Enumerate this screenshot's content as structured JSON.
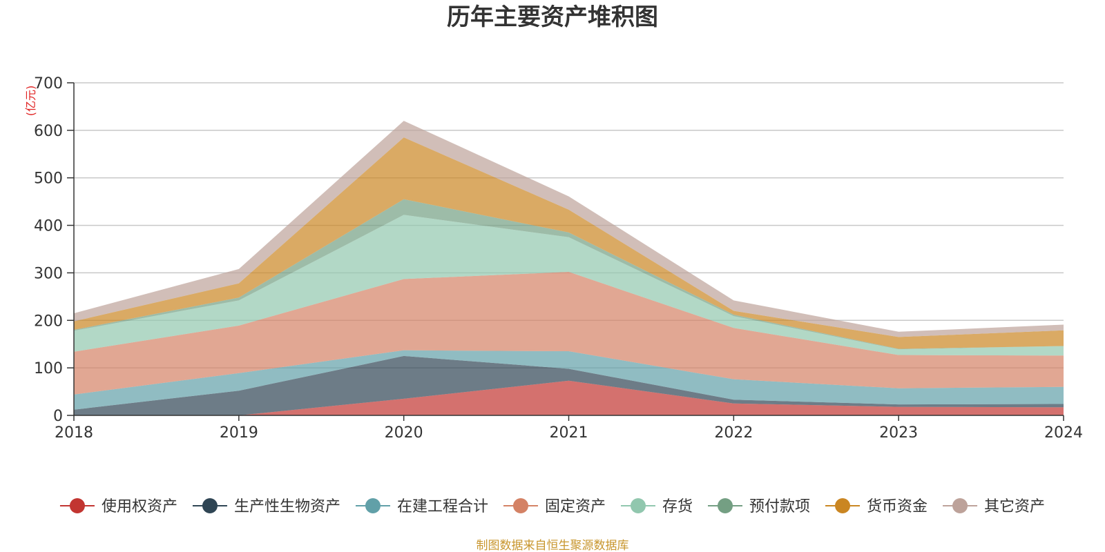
{
  "chart_data": {
    "type": "area",
    "stacked": true,
    "title": "历年主要资产堆积图",
    "unit_label": "(亿元)",
    "x": [
      "2018",
      "2019",
      "2020",
      "2021",
      "2022",
      "2023",
      "2024"
    ],
    "yticks": [
      "0",
      "100",
      "200",
      "300",
      "400",
      "500",
      "600",
      "700"
    ],
    "ylim": [
      0,
      700
    ],
    "grid": true,
    "legend_position": "bottom",
    "series": [
      {
        "name": "使用权资产",
        "color": "#c23531",
        "values": [
          0,
          0,
          35,
          73,
          25,
          18,
          17
        ]
      },
      {
        "name": "生产性生物资产",
        "color": "#2f4554",
        "values": [
          12,
          52,
          90,
          25,
          8,
          5,
          7
        ]
      },
      {
        "name": "在建工程合计",
        "color": "#61a0a8",
        "values": [
          32,
          37,
          12,
          37,
          43,
          34,
          36
        ]
      },
      {
        "name": "固定资产",
        "color": "#d48265",
        "values": [
          90,
          100,
          150,
          167,
          108,
          70,
          66
        ]
      },
      {
        "name": "存货",
        "color": "#91c7ae",
        "values": [
          44,
          53,
          135,
          73,
          25,
          12,
          20
        ]
      },
      {
        "name": "预付款项",
        "color": "#749f83",
        "values": [
          2,
          6,
          33,
          10,
          3,
          1,
          0
        ]
      },
      {
        "name": "货币资金",
        "color": "#ca8622",
        "values": [
          18,
          30,
          130,
          48,
          8,
          25,
          33
        ]
      },
      {
        "name": "其它资产",
        "color": "#bda29a",
        "values": [
          17,
          30,
          35,
          28,
          22,
          11,
          12
        ]
      }
    ],
    "source": "制图数据来自恒生聚源数据库"
  }
}
